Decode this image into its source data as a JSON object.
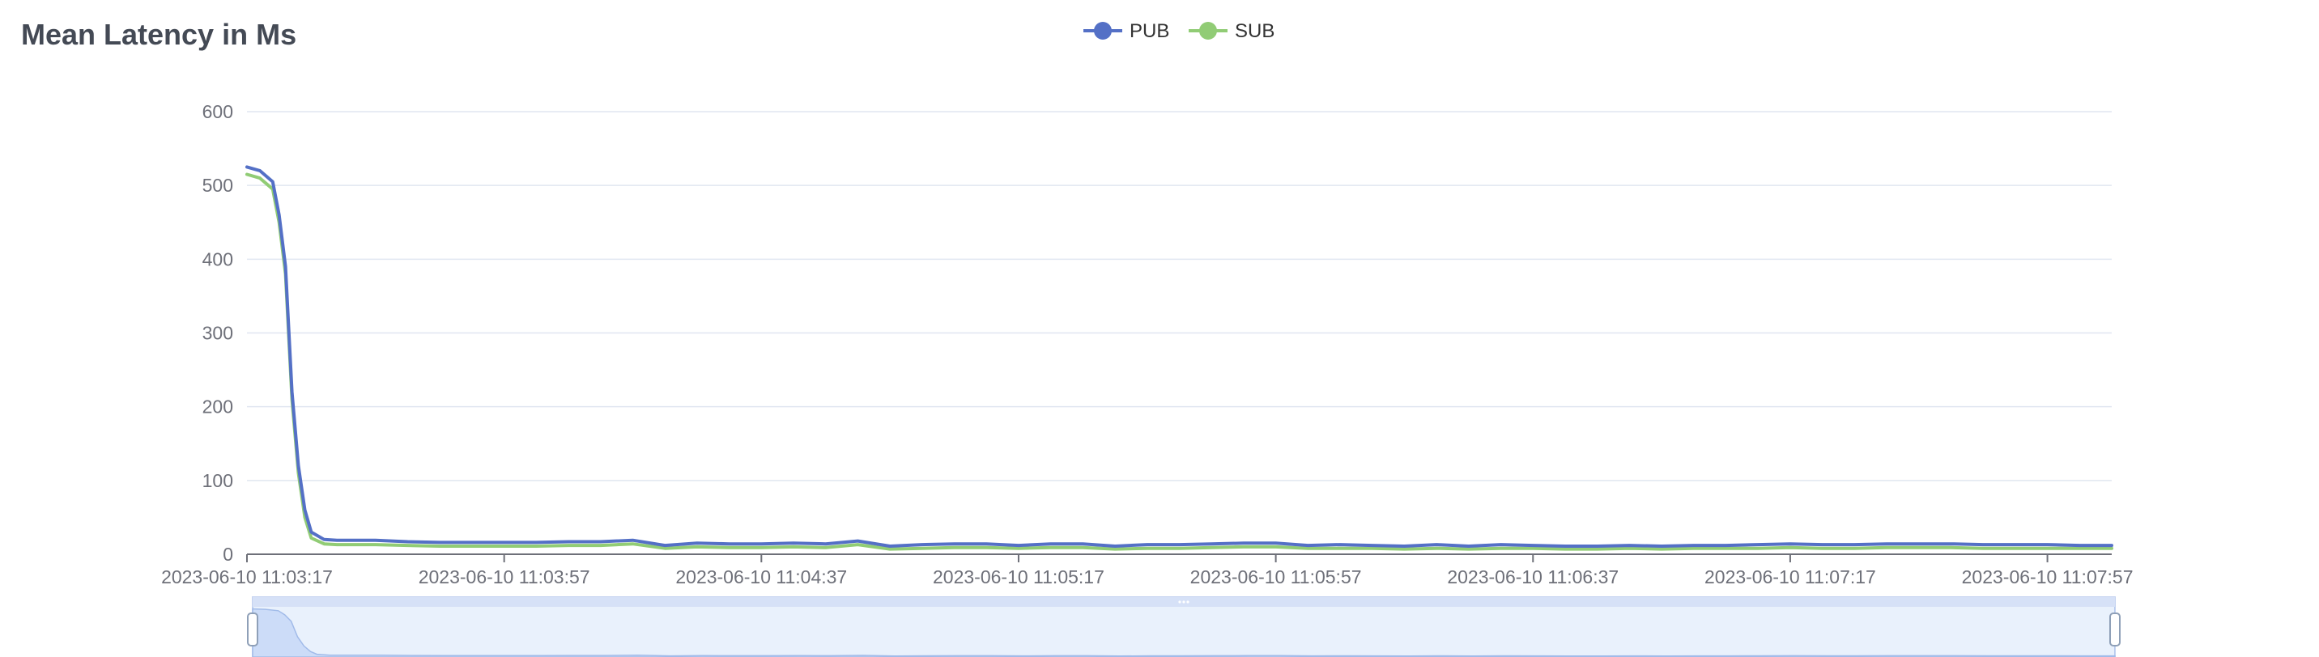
{
  "title": "Mean Latency in Ms",
  "colors": {
    "pub": "#5470c6",
    "sub": "#91cc75",
    "grid": "#e0e6f1",
    "axis": "#6e7079",
    "zoom_fill": "#dce6fb",
    "zoom_border": "#c4d2f0"
  },
  "legend": [
    {
      "name": "PUB",
      "color": "#5470c6"
    },
    {
      "name": "SUB",
      "color": "#91cc75"
    }
  ],
  "chart_data": {
    "type": "line",
    "title": "Mean Latency in Ms",
    "xlabel": "",
    "ylabel": "",
    "ylim": [
      0,
      600
    ],
    "y_ticks": [
      "0",
      "100",
      "200",
      "300",
      "400",
      "500",
      "600"
    ],
    "x_tick_labels": [
      "2023-06-10 11:03:17",
      "2023-06-10 11:03:57",
      "2023-06-10 11:04:37",
      "2023-06-10 11:05:17",
      "2023-06-10 11:05:57",
      "2023-06-10 11:06:37",
      "2023-06-10 11:07:17",
      "2023-06-10 11:07:57"
    ],
    "x_tick_seconds": [
      0,
      40,
      80,
      120,
      160,
      200,
      240,
      280
    ],
    "x": [
      0,
      2,
      4,
      5,
      6,
      7,
      8,
      9,
      10,
      12,
      14,
      16,
      20,
      25,
      30,
      35,
      40,
      45,
      50,
      55,
      60,
      65,
      70,
      75,
      80,
      85,
      90,
      95,
      100,
      105,
      110,
      115,
      120,
      125,
      130,
      135,
      140,
      145,
      150,
      155,
      160,
      165,
      170,
      175,
      180,
      185,
      190,
      195,
      200,
      205,
      210,
      215,
      220,
      225,
      230,
      235,
      240,
      245,
      250,
      255,
      260,
      265,
      270,
      275,
      280,
      285,
      290
    ],
    "series": [
      {
        "name": "PUB",
        "values": [
          525,
          520,
          505,
          460,
          390,
          220,
          120,
          60,
          30,
          20,
          19,
          19,
          19,
          17,
          16,
          16,
          16,
          16,
          17,
          17,
          19,
          12,
          15,
          14,
          14,
          15,
          14,
          18,
          11,
          13,
          14,
          14,
          12,
          14,
          14,
          11,
          13,
          13,
          14,
          15,
          15,
          12,
          13,
          12,
          11,
          13,
          11,
          13,
          12,
          11,
          11,
          12,
          11,
          12,
          12,
          13,
          14,
          13,
          13,
          14,
          14,
          14,
          13,
          13,
          13,
          12,
          12
        ]
      },
      {
        "name": "SUB",
        "values": [
          515,
          510,
          495,
          450,
          380,
          210,
          110,
          50,
          22,
          14,
          13,
          13,
          13,
          12,
          11,
          11,
          11,
          11,
          12,
          12,
          14,
          8,
          10,
          9,
          9,
          10,
          9,
          13,
          7,
          8,
          9,
          9,
          8,
          9,
          9,
          7,
          8,
          8,
          9,
          10,
          10,
          8,
          8,
          8,
          7,
          8,
          7,
          8,
          8,
          7,
          7,
          8,
          7,
          8,
          8,
          8,
          9,
          8,
          8,
          9,
          9,
          9,
          8,
          8,
          8,
          8,
          8
        ]
      }
    ],
    "legend_position": "top-center",
    "grid": true,
    "data_zoom": {
      "start_percent": 0,
      "end_percent": 100
    }
  }
}
